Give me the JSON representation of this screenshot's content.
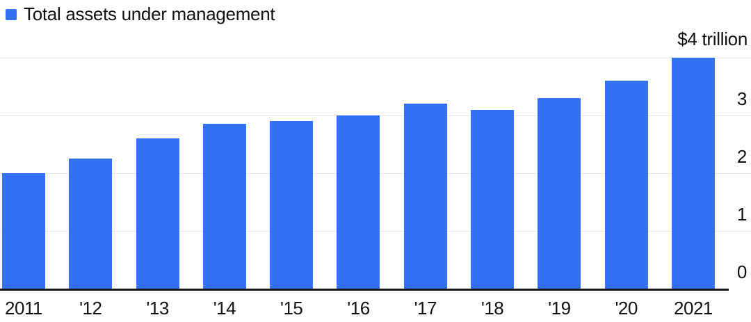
{
  "legend": {
    "label": "Total assets under management"
  },
  "annotation": "$4 trillion",
  "colors": {
    "bar": "#3370F2",
    "gridline": "#e9e9e9",
    "axis": "#161616",
    "text": "#111111",
    "background": "#ffffff"
  },
  "chart_data": {
    "type": "bar",
    "title": "Total assets under management",
    "categories": [
      "2011",
      "'12",
      "'13",
      "'14",
      "'15",
      "'16",
      "'17",
      "'18",
      "'19",
      "'20",
      "2021"
    ],
    "values": [
      2.0,
      2.25,
      2.6,
      2.85,
      2.9,
      3.0,
      3.2,
      3.1,
      3.3,
      3.6,
      4.0
    ],
    "unit": "$ trillion",
    "xlabel": "",
    "ylabel": "",
    "ylim": [
      0,
      4
    ],
    "right_axis_ticks": [
      3,
      2,
      1,
      0
    ],
    "gridline_values": [
      4,
      3,
      2,
      1
    ],
    "top_annotation": "$4 trillion",
    "legend_entries": [
      "Total assets under management"
    ],
    "legend_position": "top-left",
    "grid": true,
    "bar_color": "#3370F2"
  }
}
